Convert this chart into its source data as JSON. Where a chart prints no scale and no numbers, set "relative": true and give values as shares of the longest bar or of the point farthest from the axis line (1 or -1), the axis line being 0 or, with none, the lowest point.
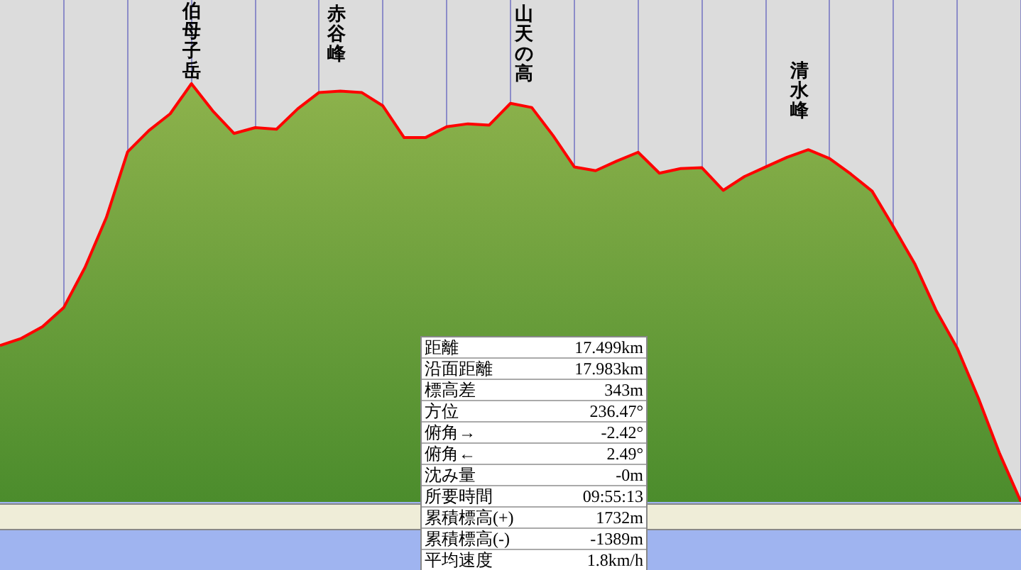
{
  "chart_data": [
    {
      "type": "area",
      "relative": true,
      "grid": "x",
      "categories": [
        null,
        null,
        null,
        null,
        null,
        null,
        null,
        null,
        null,
        null,
        null,
        null,
        null,
        null,
        null,
        null,
        null,
        null,
        null,
        null,
        null,
        null,
        null,
        null,
        null,
        null,
        null,
        null,
        null,
        null,
        null,
        null,
        null,
        null,
        null,
        null,
        null,
        null,
        null,
        null,
        null,
        null,
        null,
        null,
        null,
        null,
        null,
        null,
        null
      ],
      "series": [
        {
          "color": "#ff0000",
          "values": [
            0.374,
            0.391,
            0.419,
            0.465,
            0.561,
            0.68,
            0.837,
            0.888,
            0.928,
            1.0,
            0.935,
            0.881,
            0.895,
            0.891,
            0.94,
            0.979,
            0.982,
            0.979,
            0.947,
            0.871,
            0.871,
            0.897,
            0.904,
            0.901,
            0.953,
            0.943,
            0.876,
            0.801,
            0.792,
            0.815,
            0.836,
            0.786,
            0.797,
            0.799,
            0.745,
            0.778,
            0.801,
            0.824,
            0.842,
            0.821,
            0.784,
            0.743,
            0.658,
            0.57,
            0.459,
            0.368,
            0.248,
            0.115,
            0.0
          ]
        }
      ],
      "annotations": [
        "伯母子岳",
        "赤谷峰",
        "山天の高",
        "清水峰"
      ]
    },
    {
      "type": "other",
      "annotations": [
        "距離",
        "17.499km",
        "沿面距離",
        "17.983km",
        "標高差",
        "343m",
        "方位",
        "236.47°",
        "俯角→",
        "-2.42°",
        "俯角←",
        "2.49°",
        "沈み量",
        "-0m",
        "所要時間",
        "09:55:13",
        "累積標高(+)",
        "1732m",
        "累積標高(-)",
        "-1389m",
        "平均速度",
        "1.8km/h"
      ]
    }
  ]
}
